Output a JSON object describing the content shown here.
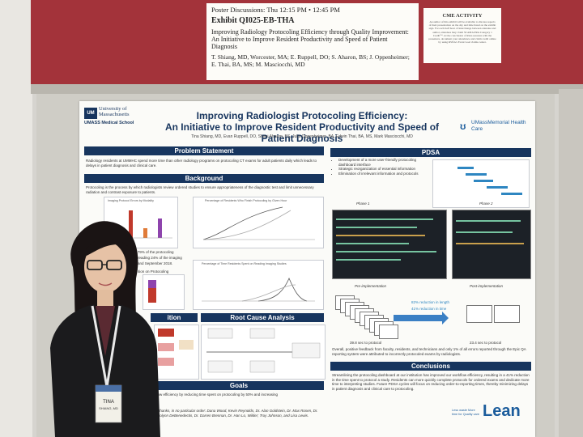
{
  "exhibit_card": {
    "discussions": "Poster Discussions: Thu 12:15 PM • 12:45 PM",
    "exhibit_id": "Exhibit QI025-EB-THA",
    "title": "Improving Radiology Protocoling Efficiency through Quality Improvement: An Initiative to Improve Resident Productivity and Speed of Patient Diagnosis",
    "authors": "T. Shiang, MD, Worcester, MA; E. Ruppell, DO; S. Aharon, BS; J. Oppenheimer; E. Thai, BA, MS; M. Masciocchi, MD"
  },
  "cme_card": {
    "title": "CME ACTIVITY",
    "text": "An author of this exhibit will be available to discuss aspects of their presentation on the day and time listed on the exhibit sign. For each half hour of interchange between attendee and author, attendees may claim 50 AMA PRA Category 1 Credit™. At the conclusion of Rsna sessions with the presenters, document your attendance and claim credit online by using RSNA's Event Goal claims center."
  },
  "poster": {
    "institution_left": "University of Massachusetts",
    "institution_left_sub": "UMASS Medical School",
    "institution_right": "UMassMemorial Health Care",
    "title_line1": "Improving Radiologist Protocoling Efficiency:",
    "title_line2": "An Initiative to Improve Resident Productivity and Speed of Patient Diagnosis",
    "authors": "Tina Shiang, MD, Evan Ruppell, DO, Shani Aharon, BS, Julia Oppenheimer, BA, Edwin Thai, BA, MS, Mark Masciocchi, MD",
    "problem_header": "Problem Statement",
    "problem_text": "Radiology residents at UMMHC spend more time than other radiology programs on protocoling CT exams for adult patients daily which leads to delays in patient diagnosis and clinical care.",
    "background_header": "Background",
    "background_text": "Protocoling is the process by which radiologists review ordered studies to ensure appropriateness of the diagnostic test and limit unnecessary radiation and contrast exposure to patients.",
    "chart1_title": "Imaging Protocol Errors by Modality",
    "chart2_title": "Percentage of Residents Who Finish Protocoling by Given Hour",
    "chart3_title": "Percentage of Time Residents Spent on Reading Imaging Studies",
    "background_frag1": "cted 79% of the protocoling",
    "background_frag2": "reading 24% of the imaging",
    "background_frag3": "and September 2018.",
    "background_frag4": "ition on Protocoling",
    "rootcause_header": "Root Cause Analysis",
    "rootcause_left_header": "ition",
    "goals_header": "Goals",
    "goals_text": "ollow efficiency by reducing time spent on protocoling by 50% and increasing",
    "pdsa_header": "PDSA",
    "pdsa_bullets": [
      "Development of a more user-friendly protocoling dashboard interface",
      "Strategic reorganization of essential information",
      "Elimination of irrelevant information and protocols"
    ],
    "phase1": "Phase 1",
    "phase2": "Phase 2",
    "pre_impl": "Pre-implementation",
    "post_impl": "Post-implementation",
    "reduction1": "82% reduction in length",
    "reduction2": "41% reduction in time",
    "pre_secs": "39.8 sec to protocol",
    "post_secs": "23.4 sec to protocol",
    "feedback_text": "Overall, positive feedback from faculty, residents, and technicians and only 1% of all errors reported through the Epic QA reporting system were attributed to incorrectly protocoled exams by radiologists.",
    "conclusions_header": "Conclusions",
    "conclusions_text": "Streamlining the protocoling dashboard at our institution has improved our workflow efficiency, resulting in a 41% reduction in the time spent to protocol a study. Residents can more quickly complete protocols for ordered exams and dedicate more time to interpreting studies. Future PDSA cycles will focus on reducing order-to-reporting times, thereby minimizing delays in patient diagnosis and clinical care to protocoling.",
    "thanks_text": "ny thanks, in no particular order: Dana Wood, Kevin Reynolds, Dr. Alan Goldstein, Dr. Max Rosen, Dr. Carolynn DeBenedectis, Dr. Darren Brennan, Dr. Han Lo, Wilder; Troy Johnson, and Lisa Lewis.",
    "lean_note": "Less waste More time for Quality care",
    "lean": "Lean"
  },
  "badge": {
    "name": "TINA",
    "sub": "SHIANG, MD"
  },
  "colors": {
    "navy": "#17355e",
    "red_board": "#a3333a",
    "accent_blue": "#1b5c9c"
  }
}
